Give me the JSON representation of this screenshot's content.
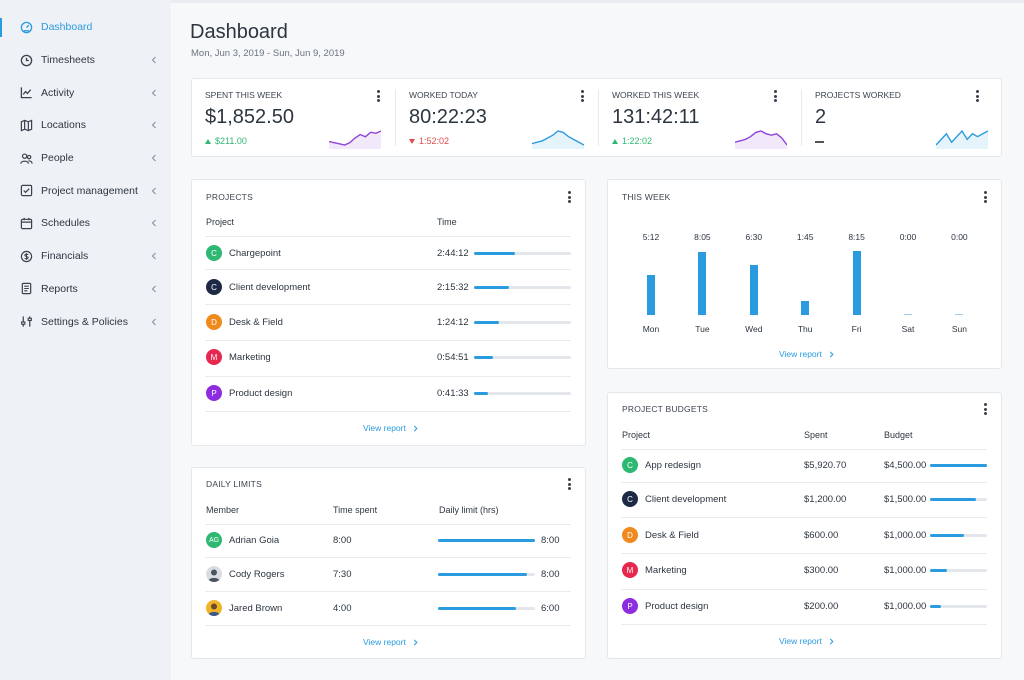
{
  "colors": {
    "accent": "#2b9be0",
    "green": "#2eb872",
    "red": "#e04b4b"
  },
  "sidebar": {
    "items": [
      {
        "label": "Dashboard",
        "icon": "gauge-icon",
        "active": true,
        "chevron": false
      },
      {
        "label": "Timesheets",
        "icon": "clock-icon",
        "chevron": true
      },
      {
        "label": "Activity",
        "icon": "activity-chart-icon",
        "chevron": true
      },
      {
        "label": "Locations",
        "icon": "map-icon",
        "chevron": true
      },
      {
        "label": "People",
        "icon": "people-icon",
        "chevron": true
      },
      {
        "label": "Project management",
        "icon": "checkbox-icon",
        "chevron": true
      },
      {
        "label": "Schedules",
        "icon": "calendar-icon",
        "chevron": true
      },
      {
        "label": "Financials",
        "icon": "dollar-icon",
        "chevron": true
      },
      {
        "label": "Reports",
        "icon": "document-icon",
        "chevron": true
      },
      {
        "label": "Settings & Policies",
        "icon": "sliders-icon",
        "chevron": true
      }
    ]
  },
  "header": {
    "title": "Dashboard",
    "date_range": "Mon, Jun 3, 2019 - Sun, Jun 9, 2019"
  },
  "stats": [
    {
      "label": "SPENT THIS WEEK",
      "value": "$1,852.50",
      "delta": "$211.00",
      "trend": "up",
      "spark_color": "#8e44d9",
      "spark": [
        5,
        4,
        3,
        2,
        4,
        8,
        11,
        9,
        13,
        12,
        14
      ]
    },
    {
      "label": "WORKED TODAY",
      "value": "80:22:23",
      "delta": "1:52:02",
      "trend": "down",
      "spark_color": "#2b9be0",
      "spark": [
        4,
        5,
        6,
        8,
        10,
        13,
        12,
        9,
        7,
        5,
        3
      ]
    },
    {
      "label": "WORKED THIS WEEK",
      "value": "131:42:11",
      "delta": "1:22:02",
      "trend": "up",
      "spark_color": "#8e44d9",
      "spark": [
        5,
        6,
        7,
        9,
        12,
        13,
        11,
        10,
        11,
        8,
        3
      ]
    },
    {
      "label": "PROJECTS WORKED",
      "value": "2",
      "delta": "",
      "trend": "none",
      "spark_color": "#2b9be0",
      "spark": [
        7,
        9,
        11,
        8,
        10,
        12,
        9,
        11,
        10,
        11,
        12
      ]
    }
  ],
  "projects": {
    "title": "PROJECTS",
    "col_project": "Project",
    "col_time": "Time",
    "rows": [
      {
        "letter": "C",
        "color": "#2eb872",
        "name": "Chargepoint",
        "time": "2:44:12",
        "fraction": 0.42
      },
      {
        "letter": "C",
        "color": "#1e2a45",
        "name": "Client development",
        "time": "2:15:32",
        "fraction": 0.36
      },
      {
        "letter": "D",
        "color": "#f08a1c",
        "name": "Desk & Field",
        "time": "1:24:12",
        "fraction": 0.26
      },
      {
        "letter": "M",
        "color": "#e6284f",
        "name": "Marketing",
        "time": "0:54:51",
        "fraction": 0.2
      },
      {
        "letter": "P",
        "color": "#8e2de0",
        "name": "Product design",
        "time": "0:41:33",
        "fraction": 0.14
      }
    ],
    "view_report": "View report"
  },
  "this_week": {
    "title": "THIS WEEK",
    "view_report": "View report"
  },
  "chart_data": {
    "type": "bar",
    "categories": [
      "Mon",
      "Tue",
      "Wed",
      "Thu",
      "Fri",
      "Sat",
      "Sun"
    ],
    "value_labels": [
      "5:12",
      "8:05",
      "6:30",
      "1:45",
      "8:15",
      "0:00",
      "0:00"
    ],
    "values": [
      5.2,
      8.08,
      6.5,
      1.75,
      8.25,
      0,
      0
    ],
    "ylim": [
      0,
      8.25
    ],
    "grid": false
  },
  "daily_limits": {
    "title": "DAILY LIMITS",
    "col_member": "Member",
    "col_time_spent": "Time spent",
    "col_daily_limit": "Daily limit (hrs)",
    "rows": [
      {
        "initials": "AG",
        "color": "#2eb872",
        "name": "Adrian Goia",
        "time_spent": "8:00",
        "limit": "8:00",
        "fraction": 1.0,
        "photo": false
      },
      {
        "initials": "",
        "color": "#5a6270",
        "name": "Cody Rogers",
        "time_spent": "7:30",
        "limit": "8:00",
        "fraction": 0.92,
        "photo": true
      },
      {
        "initials": "",
        "color": "#f0b429",
        "name": "Jared Brown",
        "time_spent": "4:00",
        "limit": "6:00",
        "fraction": 0.8,
        "photo": true
      }
    ],
    "view_report": "View report"
  },
  "budgets": {
    "title": "PROJECT BUDGETS",
    "col_project": "Project",
    "col_spent": "Spent",
    "col_budget": "Budget",
    "rows": [
      {
        "letter": "C",
        "color": "#2eb872",
        "name": "App redesign",
        "spent": "$5,920.70",
        "budget": "$4,500.00",
        "fraction": 1.0
      },
      {
        "letter": "C",
        "color": "#1e2a45",
        "name": "Client development",
        "spent": "$1,200.00",
        "budget": "$1,500.00",
        "fraction": 0.8
      },
      {
        "letter": "D",
        "color": "#f08a1c",
        "name": "Desk & Field",
        "spent": "$600.00",
        "budget": "$1,000.00",
        "fraction": 0.6
      },
      {
        "letter": "M",
        "color": "#e6284f",
        "name": "Marketing",
        "spent": "$300.00",
        "budget": "$1,000.00",
        "fraction": 0.3
      },
      {
        "letter": "P",
        "color": "#8e2de0",
        "name": "Product design",
        "spent": "$200.00",
        "budget": "$1,000.00",
        "fraction": 0.2
      }
    ],
    "view_report": "View report"
  }
}
